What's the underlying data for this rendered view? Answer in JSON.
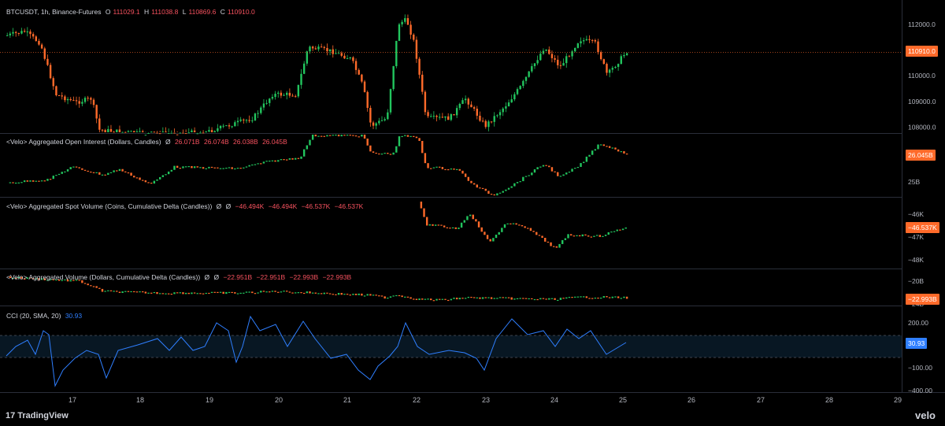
{
  "header": {
    "symbol": "BTCUSDT, 1h, Binance-Futures",
    "o_label": "O",
    "o_value": "111029.1",
    "h_label": "H",
    "h_value": "111038.8",
    "l_label": "L",
    "l_value": "110869.6",
    "c_label": "C",
    "c_value": "110910.0"
  },
  "panes": {
    "price": {
      "ticks": [
        "112000.0",
        "111000.0",
        "110000.0",
        "109000.0",
        "108000.0"
      ],
      "tick_values": [
        112000,
        111000,
        110000,
        109000,
        108000
      ],
      "last": "110910.0",
      "last_value": 110910,
      "ylim": [
        107800,
        112700
      ]
    },
    "oi": {
      "title": "<Velo> Aggregated Open Interest (Dollars, Candles)",
      "extra": "Ø",
      "values": [
        "26.071B",
        "26.074B",
        "26.038B",
        "26.045B"
      ],
      "ticks": [
        "25B"
      ],
      "last": "26.045B"
    },
    "spot": {
      "title": "<Velo> Aggregated Spot Volume (Coins, Cumulative Delta (Candles))",
      "extra1": "Ø",
      "extra2": "Ø",
      "values": [
        "−46.494K",
        "−46.494K",
        "−46.537K",
        "−46.537K"
      ],
      "ticks": [
        "−46K",
        "−47K",
        "−48K"
      ],
      "last": "−46.537K"
    },
    "vol": {
      "title": "<Velo> Aggregated Volume (Dollars, Cumulative Delta (Candles))",
      "extra1": "Ø",
      "extra2": "Ø",
      "values": [
        "−22.951B",
        "−22.951B",
        "−22.993B",
        "−22.993B"
      ],
      "ticks": [
        "−20B",
        "−24B"
      ],
      "last": "−22.993B"
    },
    "cci": {
      "title": "CCI (20, SMA, 20)",
      "value": "30.93",
      "ticks": [
        "200.00",
        "−100.00",
        "−400.00"
      ],
      "last": "30.93"
    }
  },
  "x_axis": {
    "labels": [
      "17",
      "18",
      "19",
      "20",
      "21",
      "22",
      "23",
      "24",
      "25",
      "26",
      "27",
      "28",
      "29"
    ]
  },
  "footer": {
    "brand": "TradingView",
    "velo": "velo"
  },
  "colors": {
    "up": "#26a69a",
    "down": "#ff6a2a",
    "green": "#2ecc40",
    "cci": "#2f7fff",
    "band": "#0e2a40"
  }
}
